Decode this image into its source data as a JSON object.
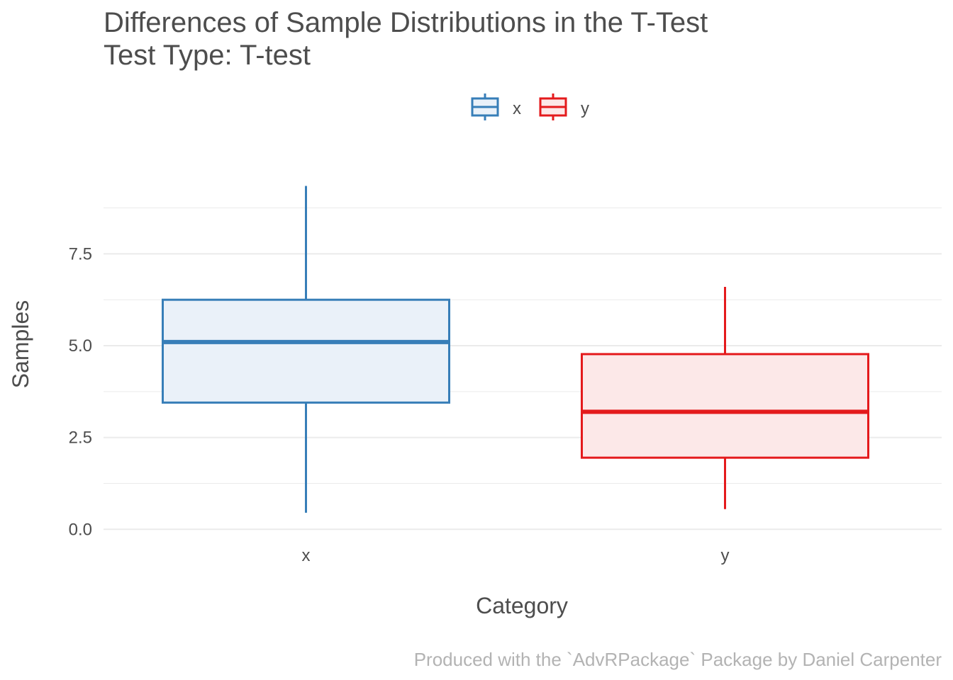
{
  "chart_data": {
    "type": "boxplot",
    "title": "Differences of Sample Distributions in the T-Test",
    "subtitle": "Test Type: T-test",
    "xlabel": "Category",
    "ylabel": "Samples",
    "caption": "Produced with the `AdvRPackage` Package by Daniel Carpenter",
    "categories": [
      "x",
      "y"
    ],
    "series": [
      {
        "name": "x",
        "min": 0.45,
        "q1": 3.45,
        "median": 5.1,
        "q3": 6.25,
        "max": 9.35,
        "color": "#377eb8",
        "fill": "#eaf1f9"
      },
      {
        "name": "y",
        "min": 0.55,
        "q1": 1.95,
        "median": 3.2,
        "q3": 4.77,
        "max": 6.6,
        "color": "#e41a1c",
        "fill": "#fce8e8"
      }
    ],
    "ylim": [
      -0.4,
      10.4
    ],
    "y_ticks": [
      0,
      2.5,
      5,
      7.5
    ],
    "y_tick_labels": [
      "0.0",
      "2.5",
      "5.0",
      "7.5"
    ],
    "grid": true,
    "legend_position": "top",
    "legend": [
      {
        "label": "x",
        "color": "#377eb8",
        "fill": "#eaf1f9"
      },
      {
        "label": "y",
        "color": "#e41a1c",
        "fill": "#fce8e8"
      }
    ],
    "gridline_color": "#ebebeb",
    "text_color": "#4d4d4d",
    "caption_color": "#b3b3b3"
  }
}
